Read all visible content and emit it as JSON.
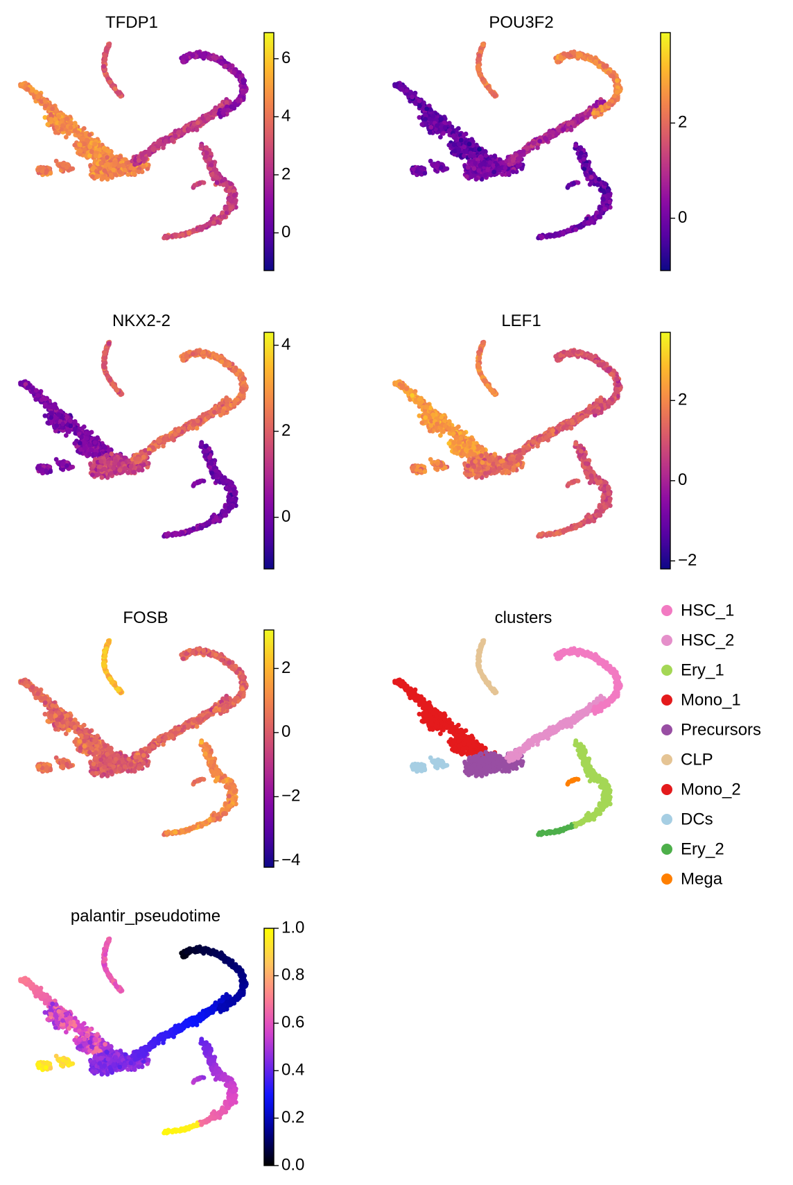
{
  "chart_data": [
    {
      "type": "scatter",
      "title": "TFDP1",
      "color_scale": "plasma",
      "colorbar": {
        "range": [
          -1.3,
          6.9
        ],
        "ticks": [
          0,
          2,
          4,
          6
        ],
        "tick_labels": [
          "0",
          "2",
          "4",
          "6"
        ]
      },
      "region_values": {
        "clp": 3.2,
        "mono": 4.6,
        "dcs": 4.2,
        "precursors": 4.4,
        "hsc2": 2.5,
        "hsc1": 1.2,
        "ery1": 2.6,
        "ery2": 3.0,
        "mega": 2.8
      }
    },
    {
      "type": "scatter",
      "title": "POU3F2",
      "color_scale": "plasma",
      "colorbar": {
        "range": [
          -1.1,
          3.9
        ],
        "ticks": [
          0,
          2
        ],
        "tick_labels": [
          "0",
          "2"
        ]
      },
      "region_values": {
        "clp": 2.2,
        "mono": -0.2,
        "dcs": 0.0,
        "precursors": 0.1,
        "hsc2": 0.8,
        "hsc1": 2.4,
        "ery1": -0.1,
        "ery2": 0.1,
        "mega": 0.0
      }
    },
    {
      "type": "scatter",
      "title": "NKX2-2",
      "color_scale": "plasma",
      "colorbar": {
        "range": [
          -1.2,
          4.3
        ],
        "ticks": [
          0,
          2,
          4
        ],
        "tick_labels": [
          "0",
          "2",
          "4"
        ]
      },
      "region_values": {
        "clp": 2.0,
        "mono": 0.2,
        "dcs": 0.3,
        "precursors": 1.4,
        "hsc2": 2.2,
        "hsc1": 2.4,
        "ery1": 0.0,
        "ery2": 0.3,
        "mega": 0.2
      }
    },
    {
      "type": "scatter",
      "title": "LEF1",
      "color_scale": "plasma",
      "colorbar": {
        "range": [
          -2.2,
          3.7
        ],
        "ticks": [
          -2,
          0,
          2
        ],
        "tick_labels": [
          "−2",
          "0",
          "2"
        ]
      },
      "region_values": {
        "clp": 1.9,
        "mono": 2.3,
        "dcs": 1.8,
        "precursors": 1.5,
        "hsc2": 1.2,
        "hsc1": 0.9,
        "ery1": 1.0,
        "ery2": 1.3,
        "mega": 1.1
      }
    },
    {
      "type": "scatter",
      "title": "FOSB",
      "color_scale": "plasma",
      "colorbar": {
        "range": [
          -4.2,
          3.2
        ],
        "ticks": [
          -4,
          -2,
          0,
          2
        ],
        "tick_labels": [
          "−4",
          "−2",
          "0",
          "2"
        ]
      },
      "region_values": {
        "clp": 2.2,
        "mono": 0.4,
        "dcs": 0.6,
        "precursors": 0.0,
        "hsc2": 0.2,
        "hsc1": 0.3,
        "ery1": 1.0,
        "ery2": 1.2,
        "mega": 0.8
      }
    },
    {
      "type": "scatter",
      "title": "clusters",
      "categorical": true,
      "legend": [
        {
          "label": "HSC_1",
          "color": "#f27ac2"
        },
        {
          "label": "HSC_2",
          "color": "#e58fca"
        },
        {
          "label": "Ery_1",
          "color": "#a4d755"
        },
        {
          "label": "Mono_1",
          "color": "#e41a1c"
        },
        {
          "label": "Precursors",
          "color": "#984ea3"
        },
        {
          "label": "CLP",
          "color": "#e5c494"
        },
        {
          "label": "Mono_2",
          "color": "#e41a1c"
        },
        {
          "label": "DCs",
          "color": "#a6cee3"
        },
        {
          "label": "Ery_2",
          "color": "#4daf4a"
        },
        {
          "label": "Mega",
          "color": "#ff7f00"
        }
      ],
      "region_clusters": {
        "clp": "CLP",
        "mono": "Mono_1",
        "dcs": "DCs",
        "precursors": "Precursors",
        "hsc2": "HSC_2",
        "hsc1": "HSC_1",
        "ery1": "Ery_1",
        "ery2": "Ery_2",
        "mega": "Mega"
      }
    },
    {
      "type": "scatter",
      "title": "palantir_pseudotime",
      "color_scale": "gnuplot2",
      "colorbar": {
        "range": [
          0.0,
          1.0
        ],
        "ticks": [
          0.0,
          0.2,
          0.4,
          0.6,
          0.8,
          1.0
        ],
        "tick_labels": [
          "0.0",
          "0.2",
          "0.4",
          "0.6",
          "0.8",
          "1.0"
        ]
      },
      "region_values": {
        "clp": 0.62,
        "mono": 0.6,
        "dcs": 0.9,
        "precursors": 0.45,
        "hsc2": 0.28,
        "hsc1": 0.08,
        "ery1": 0.5,
        "ery2": 0.88,
        "mega": 0.5
      }
    }
  ]
}
